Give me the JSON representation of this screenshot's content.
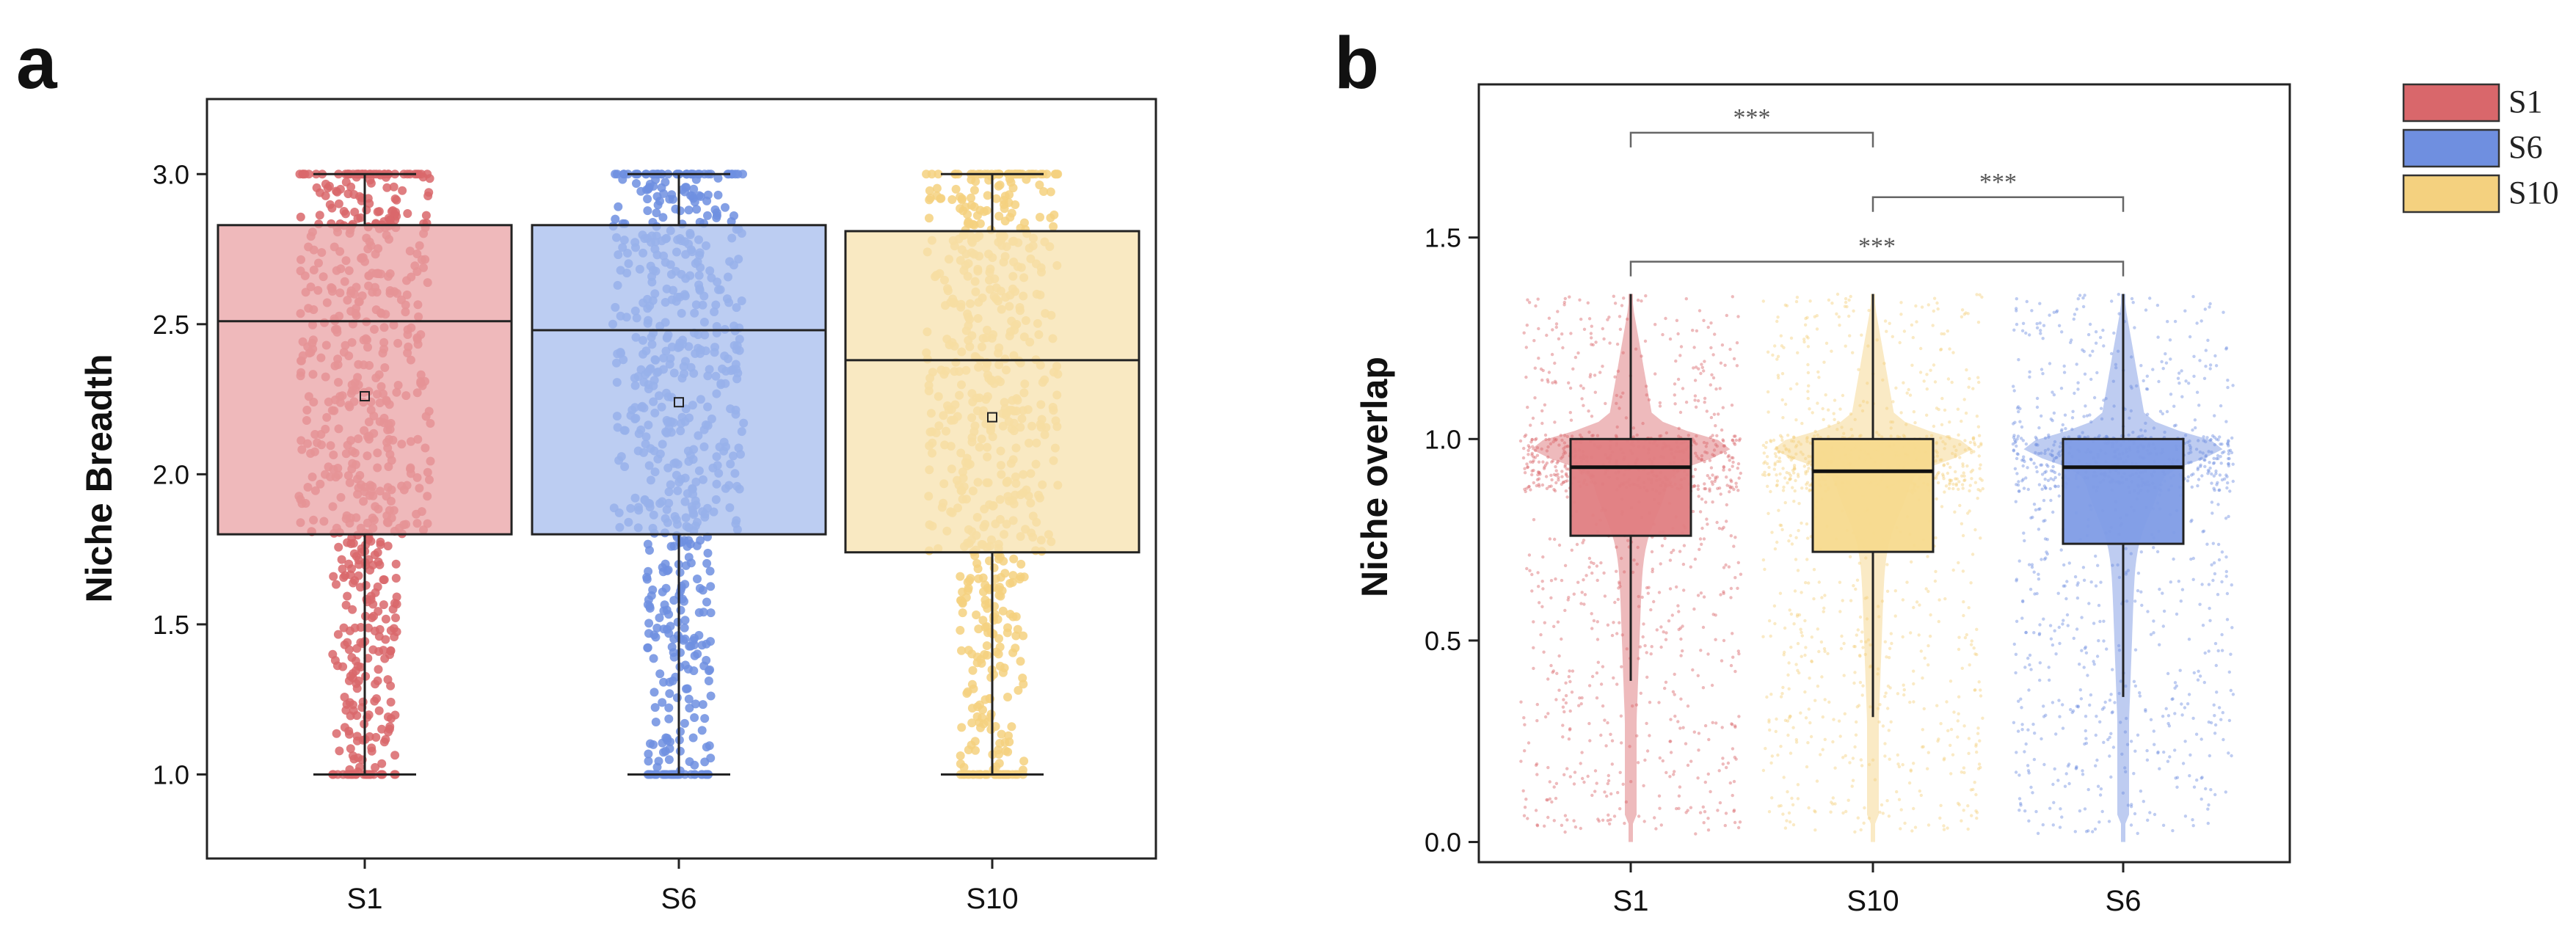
{
  "chart_data": [
    {
      "panel": "a",
      "type": "box",
      "title": "",
      "xlabel": "",
      "ylabel": "Niche Breadth",
      "ylim": [
        0.72,
        3.25
      ],
      "yticks": [
        "1.0",
        "1.5",
        "2.0",
        "2.5",
        "3.0"
      ],
      "ytick_values": [
        1.0,
        1.5,
        2.0,
        2.5,
        3.0
      ],
      "categories": [
        "S1",
        "S6",
        "S10"
      ],
      "groups": [
        {
          "name": "S1",
          "color": "#D9676B",
          "fill": "#E9A2A4",
          "min": 1.0,
          "q1": 1.8,
          "median": 2.51,
          "mean": 2.26,
          "q3": 2.83,
          "max": 3.0
        },
        {
          "name": "S6",
          "color": "#6F8FE0",
          "fill": "#A6BCEE",
          "min": 1.0,
          "q1": 1.8,
          "median": 2.48,
          "mean": 2.24,
          "q3": 2.83,
          "max": 3.0
        },
        {
          "name": "S10",
          "color": "#F4D17F",
          "fill": "#F7E2AE",
          "min": 1.0,
          "q1": 1.74,
          "median": 2.38,
          "mean": 2.19,
          "q3": 2.81,
          "max": 3.0
        }
      ]
    },
    {
      "panel": "b",
      "type": "box",
      "title": "",
      "xlabel": "",
      "ylabel": "Niche overlap",
      "ylim": [
        -0.05,
        1.88
      ],
      "yticks": [
        "0.0",
        "0.5",
        "1.0",
        "1.5"
      ],
      "ytick_values": [
        0.0,
        0.5,
        1.0,
        1.5
      ],
      "categories": [
        "S1",
        "S10",
        "S6"
      ],
      "groups": [
        {
          "name": "S1",
          "color": "#D9676B",
          "fill": "#E07E82",
          "min": 0.4,
          "q1": 0.76,
          "median": 0.93,
          "q3": 1.0,
          "max": 1.36
        },
        {
          "name": "S10",
          "color": "#F4D17F",
          "fill": "#F7DA8E",
          "min": 0.31,
          "q1": 0.72,
          "median": 0.92,
          "q3": 1.0,
          "max": 1.36
        },
        {
          "name": "S6",
          "color": "#6F8FE0",
          "fill": "#7F9CE6",
          "min": 0.36,
          "q1": 0.74,
          "median": 0.93,
          "q3": 1.0,
          "max": 1.36
        }
      ],
      "significance": [
        {
          "from": "S1",
          "to": "S10",
          "label": "***",
          "y": 1.76
        },
        {
          "from": "S10",
          "to": "S6",
          "label": "***",
          "y": 1.6
        },
        {
          "from": "S1",
          "to": "S6",
          "label": "***",
          "y": 1.44
        }
      ]
    }
  ],
  "panel_labels": {
    "a": "a",
    "b": "b"
  },
  "legend": [
    {
      "label": "S1",
      "color": "#D9676B"
    },
    {
      "label": "S6",
      "color": "#6F8FE0"
    },
    {
      "label": "S10",
      "color": "#F4D17F"
    }
  ]
}
